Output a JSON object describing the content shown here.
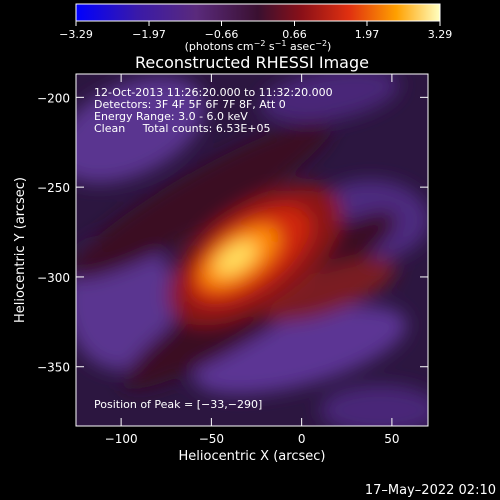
{
  "chart_data": {
    "type": "heatmap",
    "title": "Reconstructed RHESSI Image",
    "xlabel": "Heliocentric X (arcsec)",
    "ylabel": "Heliocentric Y (arcsec)",
    "xlim": [
      -125,
      70
    ],
    "ylim": [
      -383,
      -187
    ],
    "x_ticks": [
      -100,
      -50,
      0,
      50
    ],
    "x_tick_labels": [
      "−100",
      "−50",
      "0",
      "50"
    ],
    "y_ticks": [
      -200,
      -250,
      -300,
      -350
    ],
    "y_tick_labels": [
      "−200",
      "−250",
      "−300",
      "−350"
    ],
    "colorbar": {
      "range": [
        -3.29,
        3.29
      ],
      "ticks": [
        -3.29,
        -1.97,
        -0.66,
        0.66,
        1.97,
        3.29
      ],
      "tick_labels": [
        "−3.29",
        "−1.97",
        "−0.66",
        "0.66",
        "1.97",
        "3.29"
      ],
      "unit_text": "(photons cm",
      "unit_sup1": "−2",
      "unit_mid1": " s",
      "unit_sup2": "−1",
      "unit_mid2": " asec",
      "unit_sup3": "−2",
      "unit_end": ")"
    },
    "peak": {
      "x": -33,
      "y": -290,
      "value": 3.29
    },
    "annotations": [
      "12-Oct-2013 11:26:20.000 to 11:32:20.000",
      "Detectors: 3F 4F 5F 6F 7F 8F, Att 0",
      "Energy Range: 3.0 - 6.0 keV",
      "Clean     Total counts: 6.53E+05"
    ],
    "peak_label": "Position of Peak = [−33,−290]",
    "grid": false
  },
  "footer": {
    "date": "17–May–2022 02:10"
  }
}
